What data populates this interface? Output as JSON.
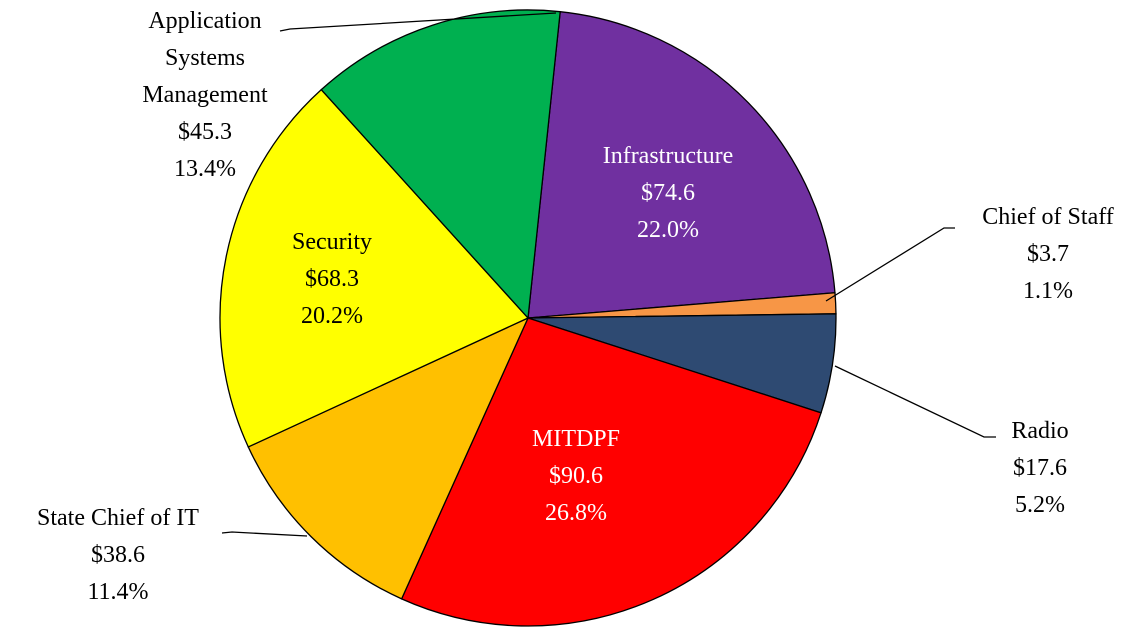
{
  "chart_data": {
    "type": "pie",
    "categories": [
      "Infrastructure",
      "Chief of Staff",
      "Radio",
      "MITDPF",
      "State Chief of IT",
      "Security",
      "Application Systems Management"
    ],
    "values": [
      74.6,
      3.7,
      17.6,
      90.6,
      38.6,
      68.3,
      45.3
    ],
    "value_labels": [
      "$74.6",
      "$3.7",
      "$17.6",
      "$90.6",
      "$38.6",
      "$68.3",
      "$45.3"
    ],
    "percentages": [
      22.0,
      1.1,
      5.2,
      26.8,
      11.4,
      20.2,
      13.4
    ],
    "percentage_labels": [
      "22.0%",
      "1.1%",
      "5.2%",
      "26.8%",
      "11.4%",
      "20.2%",
      "13.4%"
    ],
    "colors": [
      "#7030a0",
      "#f79646",
      "#2e4a72",
      "#ff0000",
      "#ffc000",
      "#ffff00",
      "#00b050"
    ]
  }
}
